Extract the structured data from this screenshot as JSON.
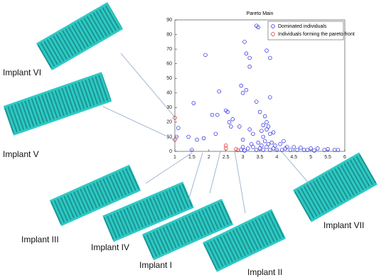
{
  "chart_data": {
    "type": "scatter",
    "title": "Pareto Main",
    "xlim": [
      1,
      6
    ],
    "xticks": [
      1,
      1.5,
      2,
      2.5,
      3,
      3.5,
      4,
      4.5,
      5,
      5.5,
      6
    ],
    "ylim": [
      0,
      90
    ],
    "yticks": [
      0,
      10,
      20,
      30,
      40,
      50,
      60,
      70,
      80,
      90
    ],
    "legend": "upper right",
    "series": [
      {
        "name": "Dominated individuals",
        "color": "#2020e0",
        "x": [
          3.4,
          3.45,
          1.9,
          3.1,
          3.7,
          3.8,
          3.2,
          3.2,
          3.05,
          2.3,
          2.95,
          3.0,
          3.1,
          3.8,
          1.55,
          2.1,
          2.25,
          2.5,
          2.55,
          2.6,
          2.7,
          2.65,
          3.4,
          3.5,
          3.65,
          3.7,
          3.6,
          3.75,
          3.7,
          3.55,
          3.8,
          3.6,
          3.9,
          3.3,
          3.0,
          3.2,
          2.9,
          2.2,
          1.85,
          1.65,
          1.4,
          1.1,
          1.05,
          4.2,
          4.1,
          3.95,
          4.3,
          4.5,
          4.7,
          5.0,
          5.2,
          5.5,
          5.7,
          5.8,
          3.0,
          3.15,
          3.3,
          3.4,
          3.5,
          3.6,
          3.7,
          3.8,
          3.9,
          4.0,
          4.15,
          4.4,
          4.6,
          4.8,
          3.25,
          3.45,
          3.55,
          3.65,
          3.75,
          3.85,
          2.95,
          3.05,
          4.25,
          4.9,
          5.1,
          5.4,
          1.5
        ],
        "values": [
          86,
          85,
          66,
          67,
          69,
          64,
          64,
          58,
          75,
          41,
          45,
          40,
          42,
          37,
          33,
          25,
          25,
          28,
          27,
          20,
          22,
          17,
          34,
          27,
          24,
          20,
          18,
          17,
          15,
          14,
          12,
          10,
          13,
          12,
          8,
          15,
          17,
          12,
          9,
          8,
          10,
          16,
          10,
          7,
          5,
          4,
          3,
          3,
          2.5,
          2,
          2,
          1.5,
          1,
          1,
          3,
          2,
          3,
          1,
          2,
          1,
          3,
          1,
          2,
          1,
          1,
          1,
          1,
          1,
          5,
          6,
          4,
          7,
          5,
          6,
          1,
          0.5,
          2,
          1,
          0.5,
          1,
          1
        ]
      },
      {
        "name": "Individuals forming the pareto front",
        "color": "#e02020",
        "x": [
          1,
          1,
          2.5,
          2.5,
          2.8,
          2.85
        ],
        "values": [
          23,
          8,
          4,
          2,
          1.5,
          0.8
        ]
      }
    ],
    "annotations": [
      "Implant VI",
      "Implant V",
      "Implant III",
      "Implant IV",
      "Implant I",
      "Implant II",
      "Implant VII"
    ]
  }
}
